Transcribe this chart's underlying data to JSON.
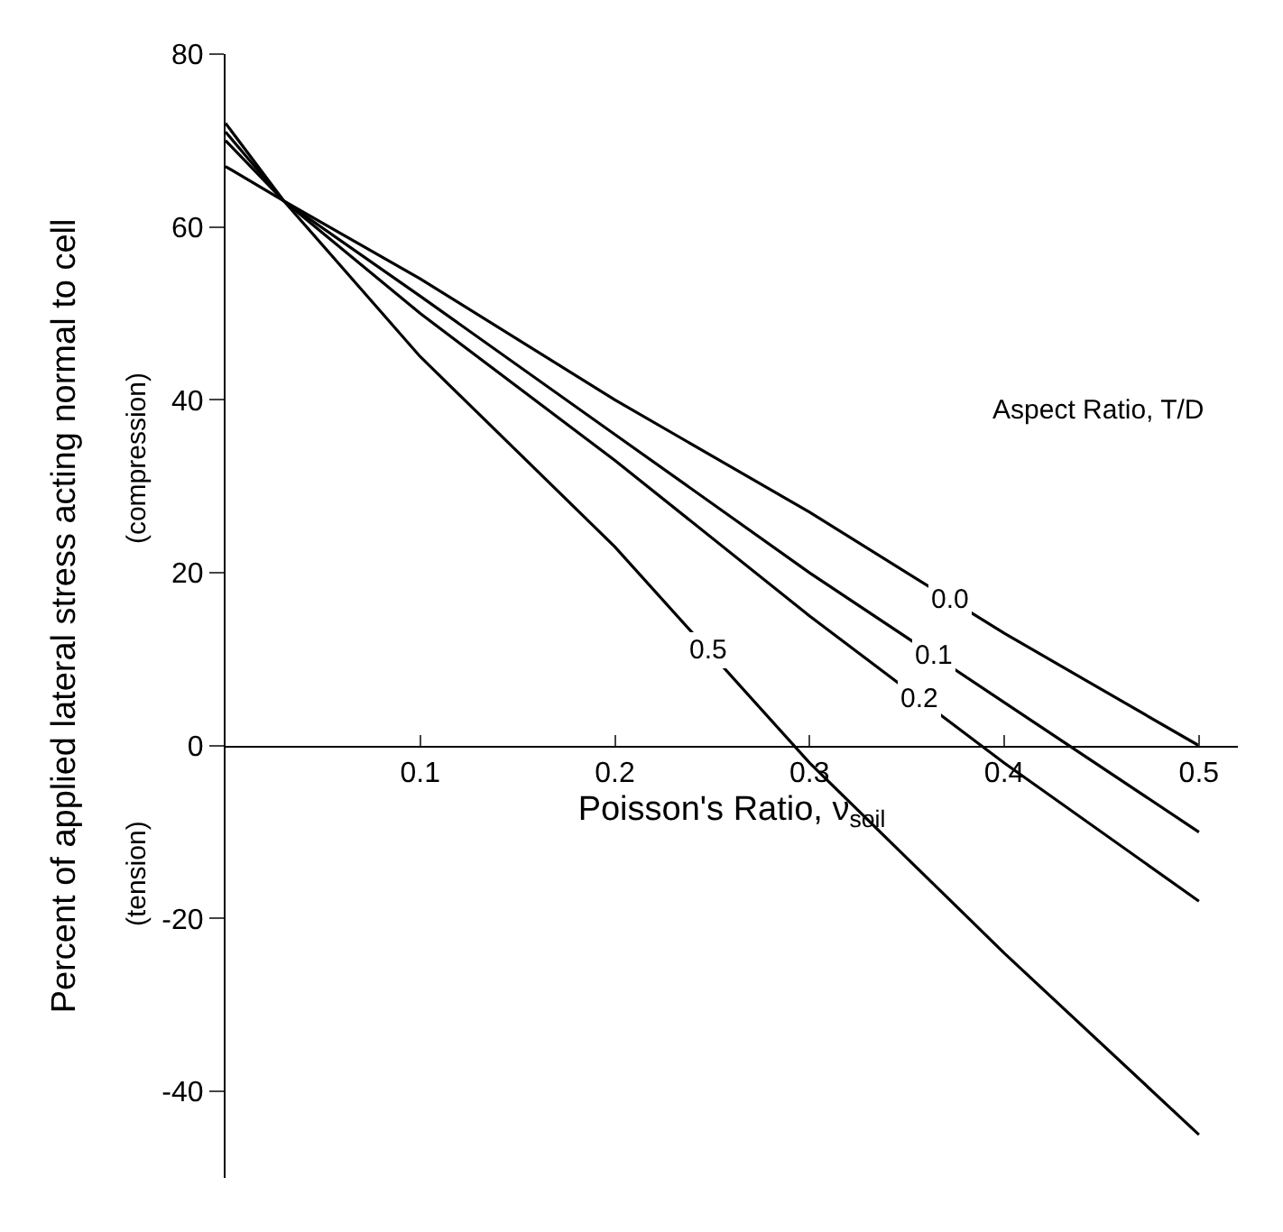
{
  "chart_data": {
    "type": "line",
    "xlabel": "Poisson's Ratio, ν$_{soil}$",
    "ylabel": "Percent of applied lateral stress acting normal to cell",
    "x": [
      0,
      0.03,
      0.1,
      0.2,
      0.3,
      0.4,
      0.5
    ],
    "series": [
      {
        "name": "0.0",
        "color": "#000000",
        "values": [
          67,
          63,
          54,
          40,
          27,
          13,
          0
        ]
      },
      {
        "name": "0.1",
        "color": "#000000",
        "values": [
          70,
          63,
          52,
          36,
          20,
          5,
          -10
        ]
      },
      {
        "name": "0.2",
        "color": "#000000",
        "values": [
          71,
          63,
          50,
          33,
          15,
          -2,
          -18
        ]
      },
      {
        "name": "0.5",
        "color": "#000000",
        "values": [
          72,
          63,
          45,
          23,
          -2,
          -24,
          -45
        ]
      }
    ],
    "annotations": [
      "Aspect Ratio, T/D",
      "(compression)",
      "(tension)"
    ],
    "xlim": [
      0,
      0.52
    ],
    "xticks": [
      0.1,
      0.2,
      0.3,
      0.4,
      0.5
    ],
    "ylim": [
      -50,
      80
    ],
    "yticks": [
      -40,
      -20,
      0,
      20,
      40,
      60,
      80
    ],
    "marker": "none",
    "line_style": "solid"
  }
}
